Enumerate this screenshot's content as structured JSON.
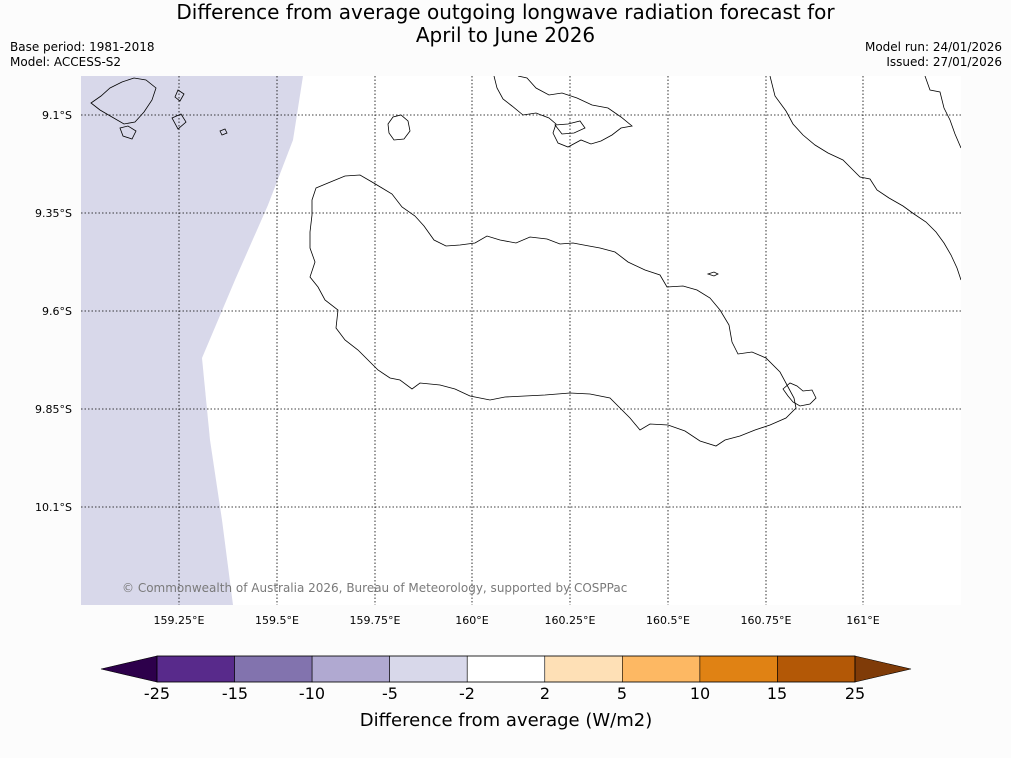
{
  "header": {
    "title_line1": "Difference from average outgoing longwave radiation forecast for",
    "title_line2": "April to June 2026",
    "base_period": "Base period: 1981-2018",
    "model": "Model: ACCESS-S2",
    "model_run": "Model run: 24/01/2026",
    "issued": "Issued: 27/01/2026"
  },
  "map": {
    "lon_ticks": [
      "159.25°E",
      "159.5°E",
      "159.75°E",
      "160°E",
      "160.25°E",
      "160.5°E",
      "160.75°E",
      "161°E"
    ],
    "lat_ticks": [
      "9.1°S",
      "9.35°S",
      "9.6°S",
      "9.85°S",
      "10.1°S"
    ],
    "copyright": "© Commonwealth of Australia 2026, Bureau of Meteorology, supported by COSPPac",
    "shaded_category": "-5 to -2"
  },
  "colorbar": {
    "tick_labels": [
      "-25",
      "-15",
      "-10",
      "-5",
      "-2",
      "2",
      "5",
      "10",
      "15",
      "25"
    ],
    "label": "Difference from average (W/m2)",
    "segment_colors": [
      "#582a8b",
      "#8273ae",
      "#b0a9d1",
      "#d8d8ea",
      "#ffffff",
      "#fee0b6",
      "#fdb863",
      "#e08214",
      "#b35806"
    ],
    "under_color": "#2d004b",
    "over_color": "#7f3b08"
  }
}
